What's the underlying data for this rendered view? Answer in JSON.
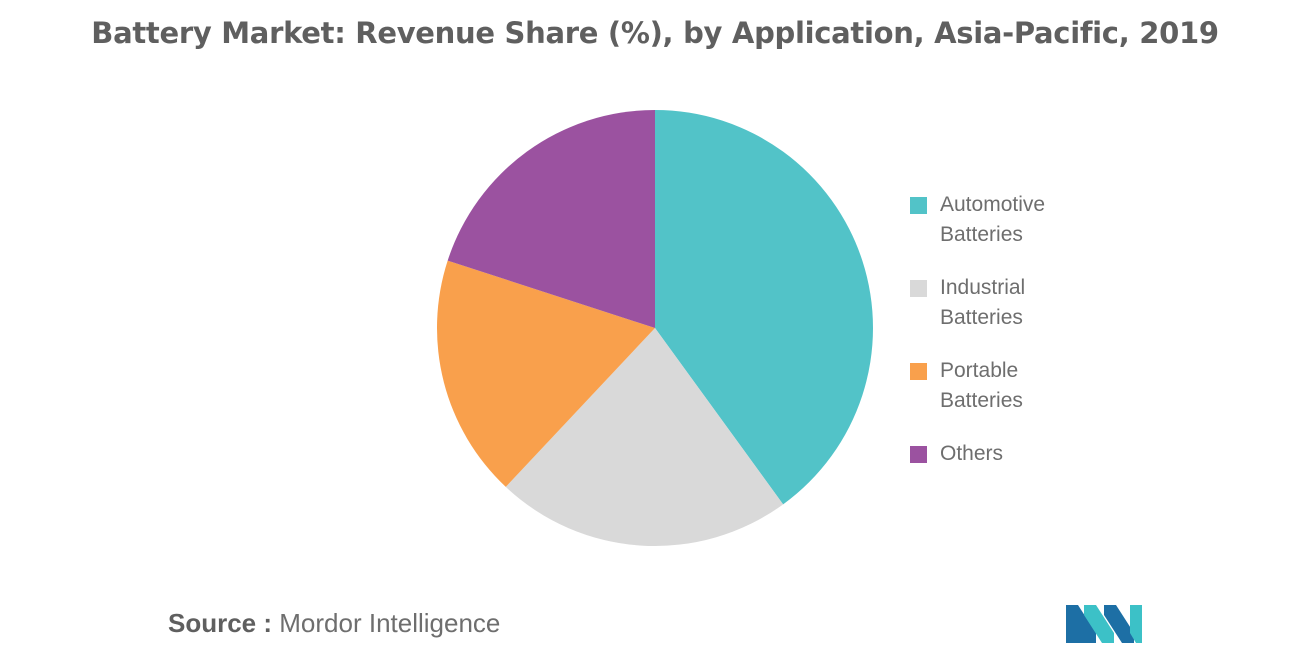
{
  "chart_data": {
    "type": "pie",
    "title": "Battery Market: Revenue Share (%), by Application, Asia-Pacific, 2019",
    "categories": [
      "Automotive Batteries",
      "Industrial Batteries",
      "Portable Batteries",
      "Others"
    ],
    "values": [
      40,
      22,
      18,
      20
    ],
    "colors": [
      "#52c3c8",
      "#d9d9d9",
      "#f9a04c",
      "#9b52a0"
    ],
    "legend_position": "right"
  },
  "legend": {
    "items": [
      {
        "line1": "Automotive",
        "line2": "Batteries",
        "color": "#52c3c8"
      },
      {
        "line1": "Industrial",
        "line2": "Batteries",
        "color": "#d9d9d9"
      },
      {
        "line1": "Portable",
        "line2": "Batteries",
        "color": "#f9a04c"
      },
      {
        "line1": "Others",
        "line2": "",
        "color": "#9b52a0"
      }
    ]
  },
  "source": {
    "prefix": "Source :",
    "text": "Mordor Intelligence"
  },
  "logo": {
    "icon": "mordor-intelligence-logo-icon",
    "colors": [
      "#1d6fa5",
      "#3cc1c7"
    ]
  }
}
